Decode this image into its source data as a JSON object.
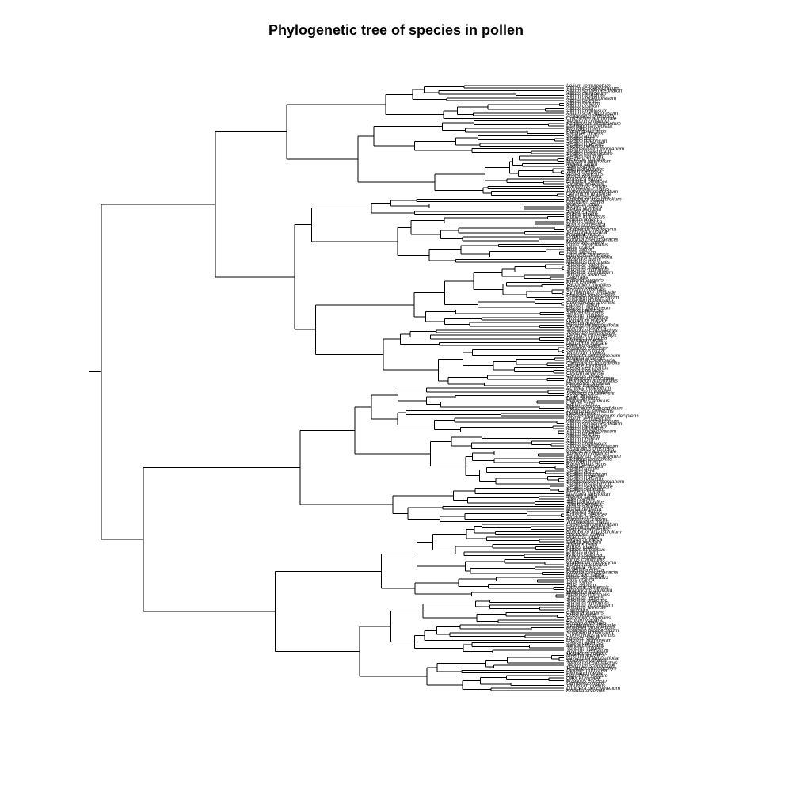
{
  "title": "Phylogenetic tree of species in pollen",
  "tree": {
    "layout": "rectangular dendrogram",
    "orientation": "root-left, tips-right",
    "tip_count": 241,
    "visible_tip_labels": [
      "Lolium temulentum",
      "Allium schoenoprasum",
      "Allium sphaerocephalon",
      "Allium oleraceum",
      "Allium carinatum",
      "Allium ampeloprasum",
      "Allium vineale",
      "Allium sativum",
      "Allium ursinum",
      "Allium cepa",
      "Allium angulosum",
      "Allium scorodoprasum",
      "Asparagus officinalis",
      "Colchicum autumnale",
      "Sedum montanum",
      "Fagopyrum esculentum",
      "Plantago lanceolata",
      "Plantago major",
      "Ranunculus acris",
      "Papaver rhoeas",
      "Sedum album",
      "Sedum acre",
      "Sedum telephium",
      "Sedum rupestre",
      "Sedum reflexum",
      "Sempervivum montanum",
      "Sedum hispanicum",
      "Sedum sexangulare",
      "Sedum spurium",
      "Berberis vulgaris",
      "Mahonia aquifolium",
      "Nigella sativa",
      "Tilia cordata",
      "Tilia platyphyllos",
      "Tilia tomentosa",
      "Malva sylvestris",
      "Malva neglecta",
      "Brassica napus",
      "Brassica oleracea",
      "Sinapis arvensis",
      "Raphanus sativus",
      "Tropaeolum majus",
      "Hypericum perforatum",
      "Geranium pratense",
      "Oenothera biennis",
      "Epilobium angustifolium",
      "Castanea sativa",
      "Quercus robur",
      "Fagus sylvatica",
      "Betula pendula",
      "Juglans regia",
      "Rubus idaeus",
      "Rubus fruticosus",
      "Prunus avium",
      "Prunus spinosa",
      "Malus domestica",
      "Pyrus communis",
      "Crataegus monogyna",
      "Sorbus aucuparia",
      "Fragaria vesca",
      "Potentilla erecta",
      "Robinia pseudoacacia",
      "Medicago sativa",
      "Lotus corniculatus",
      "Vicia cracca",
      "Vicia sativa",
      "Vicia sepium",
      "Lathyrus pratensis",
      "Onobrychis viciifolia",
      "Melilotus albus",
      "Melilotus officinalis",
      "Trifolium repens",
      "Trifolium pratense",
      "Trifolium hybridum",
      "Trifolium incarnatum",
      "Trifolium arvense",
      "Saxifraga",
      "Calluna vulgaris",
      "Erica carnea",
      "Vaccinium myrtillus",
      "Echium vulgare",
      "Borago officinalis",
      "Symphytum officinale",
      "Phacelia tanacetifolia",
      "Solanum lycopersicum",
      "Solanum tuberosum",
      "Convolvulus arvensis",
      "Lamium album",
      "Lamium purpureum",
      "Salvia pratensis",
      "Salvia officinalis",
      "Thymus vulgaris",
      "Thymus serpyllum",
      "Origanum vulgare",
      "Mentha aquatica",
      "Lavandula angustifolia",
      "Stachys sylvatica",
      "Teucrium chamaedrys",
      "Teucrium scorodonia",
      "Veronica chamaedrys",
      "Digitalis purpurea",
      "Plantago media",
      "Ligustrum vulgare",
      "Olea europaea",
      "Fraxinus excelsior",
      "Sambucus nigra",
      "Viburnum opulus",
      "Lonicera periclymenum",
      "Knautia arvensis",
      "Scabiosa columbaria",
      "Campanula rotundifolia",
      "Jasione montana",
      "Centaurea cyanus",
      "Centaurea jacea",
      "Cirsium arvense",
      "Carduus nutans",
      "Taraxacum officinale",
      "Leontodon autumnalis",
      "Hieracium pilosella",
      "Crepis capillaris",
      "Achillea millefolium",
      "Tanacetum vulgare",
      "Solidago canadensis",
      "Aster amellus",
      "Bellis perennis",
      "Helianthus annuus",
      "Carum carvi",
      "Daucus carota",
      "Heracleum sphondylium",
      "Anthriscus sylvestris",
      "Hedera helix",
      "Mesembryanthemum decipiens"
    ]
  }
}
